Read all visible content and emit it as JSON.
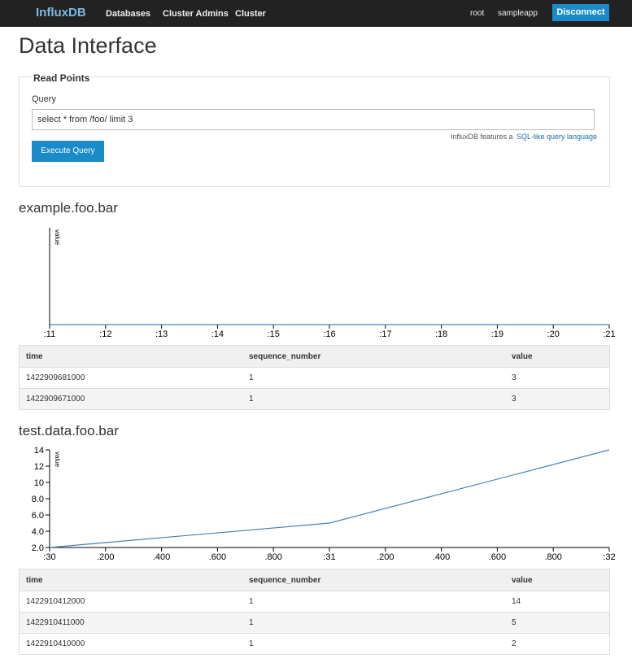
{
  "navbar": {
    "brand": "InfluxDB",
    "links": [
      "Databases",
      "Cluster Admins",
      "Cluster"
    ],
    "user": "root",
    "database": "sampleapp",
    "button": "Disconnect"
  },
  "page_title": "Data Interface",
  "form": {
    "legend": "Read Points",
    "label": "Query",
    "query": "select * from /foo/ limit 3",
    "help_text": "InfluxDB features a",
    "help_link": "SQL-like query language",
    "button": "Execute Query"
  },
  "chart_data": [
    {
      "type": "line",
      "title": "example.foo.bar",
      "y_label": "value",
      "xlim": [
        1422909671000,
        1422909681000
      ],
      "xticks": [
        {
          "value": 1422909671000,
          "label": ":11"
        },
        {
          "value": 1422909672000,
          "label": ":12"
        },
        {
          "value": 1422909673000,
          "label": ":13"
        },
        {
          "value": 1422909674000,
          "label": ":14"
        },
        {
          "value": 1422909675000,
          "label": ":15"
        },
        {
          "value": 1422909676000,
          "label": ":16"
        },
        {
          "value": 1422909677000,
          "label": ":17"
        },
        {
          "value": 1422909678000,
          "label": ":18"
        },
        {
          "value": 1422909679000,
          "label": ":19"
        },
        {
          "value": 1422909680000,
          "label": ":20"
        },
        {
          "value": 1422909681000,
          "label": ":21"
        }
      ],
      "series": [
        {
          "name": "value",
          "color": "#4682b4",
          "x": [
            1422909671000,
            1422909681000
          ],
          "values": [
            3,
            3
          ]
        }
      ]
    },
    {
      "type": "line",
      "title": "test.data.foo.bar",
      "y_label": "value",
      "xlim": [
        1422910410000,
        1422910412000
      ],
      "xticks": [
        {
          "value": 1422910410000,
          "label": ":30"
        },
        {
          "value": 1422910410200,
          "label": ".200"
        },
        {
          "value": 1422910410400,
          "label": ".400"
        },
        {
          "value": 1422910410600,
          "label": ".600"
        },
        {
          "value": 1422910410800,
          "label": ".800"
        },
        {
          "value": 1422910411000,
          "label": ":31"
        },
        {
          "value": 1422910411200,
          "label": ".200"
        },
        {
          "value": 1422910411400,
          "label": ".400"
        },
        {
          "value": 1422910411600,
          "label": ".600"
        },
        {
          "value": 1422910411800,
          "label": ".800"
        },
        {
          "value": 1422910412000,
          "label": ":32"
        }
      ],
      "ylim": [
        2,
        14
      ],
      "yticks": [
        {
          "value": 2,
          "label": "2.0"
        },
        {
          "value": 4,
          "label": "4.0"
        },
        {
          "value": 6,
          "label": "6.0"
        },
        {
          "value": 8,
          "label": "8.0"
        },
        10,
        12,
        14
      ],
      "series": [
        {
          "name": "value",
          "color": "#4682b4",
          "x": [
            1422910410000,
            1422910411000,
            1422910412000
          ],
          "values": [
            2,
            5,
            14
          ]
        }
      ]
    }
  ],
  "tables": [
    {
      "columns": [
        "time",
        "sequence_number",
        "value"
      ],
      "rows": [
        [
          1422909681000,
          1,
          3
        ],
        [
          1422909671000,
          1,
          3
        ]
      ]
    },
    {
      "columns": [
        "time",
        "sequence_number",
        "value"
      ],
      "rows": [
        [
          1422910412000,
          1,
          14
        ],
        [
          1422910411000,
          1,
          5
        ],
        [
          1422910410000,
          1,
          2
        ]
      ]
    }
  ]
}
